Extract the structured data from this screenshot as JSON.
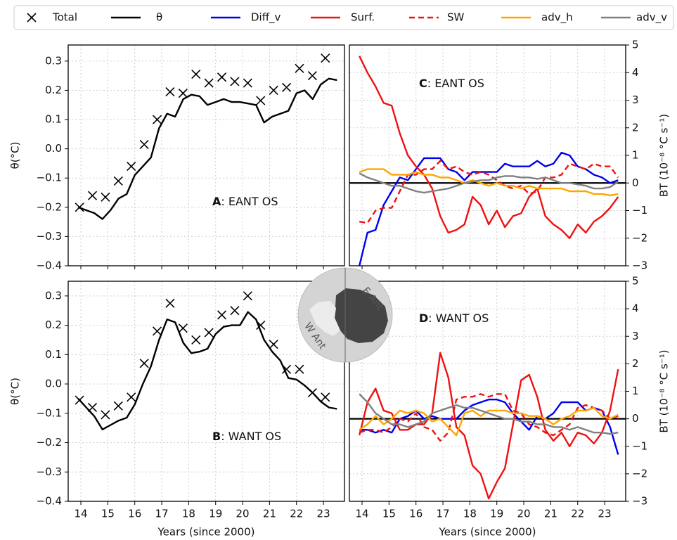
{
  "chart_data": [
    {
      "type": "line",
      "ylabel": "θ(°C)",
      "annotation": {
        "letter": "A",
        "text": ": EANT OS"
      },
      "xlim": [
        13.53,
        23.78
      ],
      "xticks": [
        14,
        15,
        16,
        17,
        18,
        19,
        20,
        21,
        22,
        23
      ],
      "ylim": [
        -0.4,
        0.355
      ],
      "yticks": [
        0.3,
        0.2,
        0.1,
        {
          "value": 0,
          "label": "0.0"
        },
        {
          "value": -0.1,
          "label": "−0.1"
        },
        {
          "value": -0.2,
          "label": "−0.2"
        },
        {
          "value": -0.3,
          "label": "−0.3"
        },
        {
          "value": -0.4,
          "label": "−0.4"
        }
      ],
      "grid": true,
      "x": [
        13.9,
        14.2,
        14.5,
        14.8,
        15.1,
        15.4,
        15.7,
        16.0,
        16.3,
        16.6,
        16.9,
        17.2,
        17.5,
        17.8,
        18.1,
        18.4,
        18.7,
        19.0,
        19.3,
        19.6,
        19.9,
        20.2,
        20.5,
        20.8,
        21.1,
        21.4,
        21.7,
        22.0,
        22.3,
        22.6,
        22.9,
        23.2,
        23.5
      ],
      "series": [
        {
          "name": "Total",
          "marker": "x",
          "color": "#000000",
          "x": [
            13.95,
            14.43,
            14.91,
            15.39,
            15.87,
            16.35,
            16.83,
            17.31,
            17.79,
            18.27,
            18.75,
            19.23,
            19.71,
            20.19,
            20.67,
            21.15,
            21.63,
            22.11,
            22.59,
            23.07
          ],
          "values": [
            -0.2,
            -0.16,
            -0.165,
            -0.11,
            -0.06,
            0.015,
            0.1,
            0.195,
            0.19,
            0.255,
            0.225,
            0.245,
            0.23,
            0.225,
            0.165,
            0.2,
            0.21,
            0.275,
            0.25,
            0.31
          ]
        },
        {
          "name": "θ",
          "color": "#000000",
          "values": [
            -0.2,
            -0.21,
            -0.22,
            -0.24,
            -0.21,
            -0.17,
            -0.155,
            -0.09,
            -0.06,
            -0.03,
            0.07,
            0.12,
            0.11,
            0.17,
            0.185,
            0.18,
            0.15,
            0.16,
            0.17,
            0.16,
            0.16,
            0.155,
            0.15,
            0.09,
            0.11,
            0.12,
            0.13,
            0.19,
            0.2,
            0.17,
            0.22,
            0.24,
            0.235
          ]
        }
      ]
    },
    {
      "type": "line",
      "ylabel": "θ(°C)",
      "xlabel": "Years (since 2000)",
      "annotation": {
        "letter": "B",
        "text": ": WANT OS"
      },
      "xlim": [
        13.53,
        23.78
      ],
      "xticks": [
        14,
        15,
        16,
        17,
        18,
        19,
        20,
        21,
        22,
        23
      ],
      "ylim": [
        -0.4,
        0.35
      ],
      "yticks": [
        0.3,
        0.2,
        0.1,
        {
          "value": 0,
          "label": "0.0"
        },
        {
          "value": -0.1,
          "label": "−0.1"
        },
        {
          "value": -0.2,
          "label": "−0.2"
        },
        {
          "value": -0.3,
          "label": "−0.3"
        },
        {
          "value": -0.4,
          "label": "−0.4"
        }
      ],
      "grid": true,
      "x": [
        13.9,
        14.2,
        14.5,
        14.8,
        15.1,
        15.4,
        15.7,
        16.0,
        16.3,
        16.6,
        16.9,
        17.2,
        17.5,
        17.8,
        18.1,
        18.4,
        18.7,
        19.0,
        19.3,
        19.6,
        19.9,
        20.2,
        20.5,
        20.8,
        21.1,
        21.4,
        21.7,
        22.0,
        22.3,
        22.6,
        22.9,
        23.2,
        23.5
      ],
      "series": [
        {
          "name": "Total",
          "marker": "x",
          "color": "#000000",
          "x": [
            13.95,
            14.43,
            14.91,
            15.39,
            15.87,
            16.35,
            16.83,
            17.31,
            17.79,
            18.27,
            18.75,
            19.23,
            19.71,
            20.19,
            20.67,
            21.15,
            21.63,
            22.11,
            22.59,
            23.07
          ],
          "values": [
            -0.055,
            -0.08,
            -0.105,
            -0.075,
            -0.045,
            0.07,
            0.18,
            0.275,
            0.19,
            0.15,
            0.175,
            0.235,
            0.25,
            0.3,
            0.2,
            0.135,
            0.05,
            0.05,
            -0.03,
            -0.045
          ]
        },
        {
          "name": "θ",
          "color": "#000000",
          "values": [
            -0.05,
            -0.08,
            -0.11,
            -0.155,
            -0.14,
            -0.125,
            -0.115,
            -0.07,
            0.0,
            0.06,
            0.15,
            0.22,
            0.21,
            0.14,
            0.105,
            0.11,
            0.12,
            0.17,
            0.195,
            0.2,
            0.2,
            0.245,
            0.22,
            0.15,
            0.11,
            0.08,
            0.02,
            0.015,
            -0.005,
            -0.03,
            -0.06,
            -0.08,
            -0.085
          ]
        }
      ]
    },
    {
      "type": "line",
      "ylabel": "BT (10⁻⁸ °C s⁻¹)",
      "annotation": {
        "letter": "C",
        "text": ": EANT OS"
      },
      "xlim": [
        13.53,
        23.78
      ],
      "xticks": [
        14,
        15,
        16,
        17,
        18,
        19,
        20,
        21,
        22,
        23
      ],
      "y2lim": [
        -3,
        5
      ],
      "y2ticks": [
        5,
        4,
        3,
        2,
        1,
        0,
        {
          "value": -1,
          "label": "−1"
        },
        {
          "value": -2,
          "label": "−2"
        },
        {
          "value": -3,
          "label": "−3"
        }
      ],
      "grid": true,
      "hline": 0,
      "x": [
        13.9,
        14.2,
        14.5,
        14.8,
        15.1,
        15.4,
        15.7,
        16.0,
        16.3,
        16.6,
        16.9,
        17.2,
        17.5,
        17.8,
        18.1,
        18.4,
        18.7,
        19.0,
        19.3,
        19.6,
        19.9,
        20.2,
        20.5,
        20.8,
        21.1,
        21.4,
        21.7,
        22.0,
        22.3,
        22.6,
        22.9,
        23.2,
        23.5
      ],
      "series": [
        {
          "name": "Diff_v",
          "color": "#0000ee",
          "axis": "y2",
          "values": [
            -3.0,
            -1.8,
            -1.7,
            -0.8,
            -0.3,
            0.2,
            0.1,
            0.5,
            0.9,
            0.9,
            0.9,
            0.5,
            0.4,
            0.1,
            0.4,
            0.4,
            0.4,
            0.4,
            0.7,
            0.6,
            0.6,
            0.6,
            0.8,
            0.6,
            0.7,
            1.1,
            1.0,
            0.6,
            0.5,
            0.3,
            0.2,
            0.0,
            0.1
          ]
        },
        {
          "name": "Surf.",
          "color": "#ee1111",
          "axis": "y2",
          "values": [
            4.6,
            4.0,
            3.5,
            2.9,
            2.8,
            1.8,
            1.0,
            0.6,
            0.3,
            -0.2,
            -1.2,
            -1.8,
            -1.7,
            -1.5,
            -0.5,
            -0.8,
            -1.5,
            -1.0,
            -1.6,
            -1.2,
            -1.1,
            -0.5,
            -0.2,
            -1.2,
            -1.5,
            -1.7,
            -2.0,
            -1.5,
            -1.8,
            -1.4,
            -1.2,
            -0.9,
            -0.5
          ]
        },
        {
          "name": "SW",
          "color": "#ee1111",
          "linestyle": "dashed",
          "axis": "y2",
          "values": [
            -1.4,
            -1.45,
            -1.0,
            -0.9,
            -0.9,
            -0.3,
            0.3,
            0.3,
            0.5,
            0.5,
            0.8,
            0.5,
            0.6,
            0.4,
            0.3,
            0.4,
            0.3,
            0.1,
            -0.1,
            -0.2,
            -0.1,
            -0.4,
            -0.3,
            0.2,
            0.2,
            0.3,
            0.7,
            0.6,
            0.5,
            0.7,
            0.6,
            0.6,
            0.2
          ]
        },
        {
          "name": "adv_h",
          "color": "#ffa500",
          "axis": "y2",
          "values": [
            0.4,
            0.5,
            0.5,
            0.5,
            0.3,
            0.3,
            0.3,
            0.4,
            0.3,
            0.3,
            0.2,
            0.2,
            0.1,
            0.0,
            0.1,
            0.0,
            -0.1,
            0.0,
            -0.1,
            -0.1,
            -0.2,
            -0.1,
            -0.2,
            -0.2,
            -0.2,
            -0.2,
            -0.3,
            -0.3,
            -0.3,
            -0.4,
            -0.4,
            -0.45,
            -0.4
          ]
        },
        {
          "name": "adv_v",
          "color": "#808080",
          "axis": "y2",
          "values": [
            0.35,
            0.2,
            0.1,
            0.0,
            -0.1,
            -0.1,
            -0.2,
            -0.3,
            -0.35,
            -0.3,
            -0.25,
            -0.2,
            -0.1,
            0.0,
            0.05,
            0.1,
            0.1,
            0.2,
            0.25,
            0.25,
            0.2,
            0.2,
            0.15,
            0.2,
            0.1,
            0.0,
            0.0,
            -0.05,
            -0.1,
            -0.2,
            -0.2,
            -0.15,
            0.05
          ]
        }
      ]
    },
    {
      "type": "line",
      "ylabel": "BT (10⁻⁸ °C s⁻¹)",
      "xlabel": "Years (since 2000)",
      "annotation": {
        "letter": "D",
        "text": ": WANT OS"
      },
      "xlim": [
        13.53,
        23.78
      ],
      "xticks": [
        14,
        15,
        16,
        17,
        18,
        19,
        20,
        21,
        22,
        23
      ],
      "y2lim": [
        -3,
        5
      ],
      "y2ticks": [
        5,
        4,
        3,
        2,
        1,
        0,
        {
          "value": -1,
          "label": "−1"
        },
        {
          "value": -2,
          "label": "−2"
        },
        {
          "value": -3,
          "label": "−3"
        }
      ],
      "grid": true,
      "hline": 0,
      "x": [
        13.9,
        14.2,
        14.5,
        14.8,
        15.1,
        15.4,
        15.7,
        16.0,
        16.3,
        16.6,
        16.9,
        17.2,
        17.5,
        17.8,
        18.1,
        18.4,
        18.7,
        19.0,
        19.3,
        19.6,
        19.9,
        20.2,
        20.5,
        20.8,
        21.1,
        21.4,
        21.7,
        22.0,
        22.3,
        22.6,
        22.9,
        23.2,
        23.5
      ],
      "series": [
        {
          "name": "Diff_v",
          "color": "#0000ee",
          "axis": "y2",
          "values": [
            -0.4,
            -0.4,
            -0.5,
            -0.4,
            -0.5,
            0.0,
            0.1,
            0.3,
            0.0,
            0.1,
            0.0,
            0.0,
            0.0,
            0.3,
            0.5,
            0.6,
            0.7,
            0.7,
            0.6,
            0.2,
            -0.1,
            -0.4,
            0.1,
            0.0,
            0.2,
            0.6,
            0.6,
            0.6,
            0.3,
            0.4,
            0.3,
            -0.3,
            -1.3
          ]
        },
        {
          "name": "Surf.",
          "color": "#ee1111",
          "axis": "y2",
          "values": [
            -0.6,
            0.6,
            1.1,
            0.3,
            0.2,
            -0.4,
            -0.4,
            -0.2,
            -0.2,
            0.2,
            2.4,
            1.5,
            -0.3,
            -0.6,
            -1.7,
            -2.0,
            -2.9,
            -2.3,
            -1.8,
            -0.2,
            1.4,
            1.6,
            0.8,
            -0.4,
            -0.8,
            -0.5,
            -1.0,
            -0.5,
            -0.6,
            -0.9,
            -0.5,
            0.3,
            1.8
          ]
        },
        {
          "name": "SW",
          "color": "#ee1111",
          "linestyle": "dashed",
          "axis": "y2",
          "values": [
            -0.5,
            -0.4,
            -0.4,
            -0.5,
            -0.3,
            0.0,
            -0.1,
            0.2,
            -0.3,
            -0.4,
            -0.8,
            -0.5,
            0.7,
            0.8,
            0.8,
            0.9,
            0.8,
            0.9,
            0.9,
            0.3,
            0.2,
            -0.2,
            -0.3,
            -0.5,
            -0.6,
            -0.4,
            -0.2,
            0.4,
            0.5,
            0.4,
            0.3,
            0.0,
            0.1
          ]
        },
        {
          "name": "adv_h",
          "color": "#ffa500",
          "axis": "y2",
          "values": [
            -0.4,
            -0.2,
            0.1,
            -0.2,
            0.0,
            0.3,
            0.2,
            0.3,
            0.2,
            -0.1,
            0.0,
            -0.3,
            -0.6,
            0.2,
            0.3,
            0.1,
            0.3,
            0.3,
            0.3,
            0.2,
            0.2,
            0.1,
            0.1,
            0.0,
            -0.2,
            0.0,
            0.1,
            0.3,
            0.3,
            0.4,
            0.1,
            0.0,
            0.15
          ]
        },
        {
          "name": "adv_v",
          "color": "#808080",
          "axis": "y2",
          "values": [
            0.9,
            0.6,
            0.2,
            0.0,
            -0.2,
            -0.2,
            -0.3,
            -0.2,
            -0.1,
            0.2,
            0.3,
            0.4,
            0.5,
            0.4,
            0.4,
            0.3,
            0.2,
            0.1,
            0.0,
            0.0,
            -0.1,
            -0.1,
            -0.2,
            -0.2,
            -0.3,
            -0.3,
            -0.4,
            -0.3,
            -0.4,
            -0.5,
            -0.5,
            -0.55,
            -0.5
          ]
        }
      ]
    }
  ],
  "inset": {
    "labels": [
      "E Ant",
      "W Ant"
    ]
  }
}
